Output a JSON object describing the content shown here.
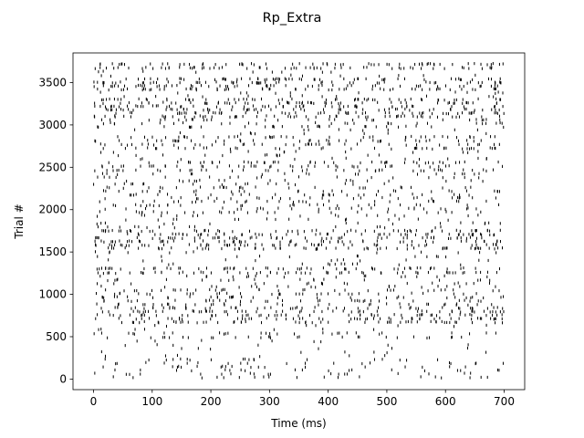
{
  "chart_data": {
    "type": "scatter",
    "subtype": "raster",
    "title": "Rp_Extra",
    "xlabel": "Time (ms)",
    "ylabel": "Trial #",
    "xlim": [
      -35,
      735
    ],
    "ylim": [
      -125,
      3850
    ],
    "x_ticks": [
      0,
      100,
      200,
      300,
      400,
      500,
      600,
      700
    ],
    "x_tick_labels": [
      "0",
      "100",
      "200",
      "300",
      "400",
      "500",
      "600",
      "700"
    ],
    "y_ticks": [
      0,
      500,
      1000,
      1500,
      2000,
      2500,
      3000,
      3500
    ],
    "y_tick_labels": [
      "0",
      "500",
      "1000",
      "1500",
      "2000",
      "2500",
      "3000",
      "3500"
    ],
    "grid": false,
    "legend": "none",
    "marker": "|",
    "marker_color": "#000000",
    "time_range": [
      0,
      700
    ],
    "trial_range": [
      0,
      3740
    ],
    "density_bands": [
      {
        "trial_range": [
          0,
          250
        ],
        "level": 0.3
      },
      {
        "trial_range": [
          250,
          470
        ],
        "level": 0.1
      },
      {
        "trial_range": [
          470,
          560
        ],
        "level": 0.45
      },
      {
        "trial_range": [
          560,
          650
        ],
        "level": 0.12
      },
      {
        "trial_range": [
          650,
          860
        ],
        "level": 0.85
      },
      {
        "trial_range": [
          860,
          1070
        ],
        "level": 0.55
      },
      {
        "trial_range": [
          1070,
          1230
        ],
        "level": 0.3
      },
      {
        "trial_range": [
          1230,
          1330
        ],
        "level": 0.95
      },
      {
        "trial_range": [
          1330,
          1520
        ],
        "level": 0.2
      },
      {
        "trial_range": [
          1520,
          1770
        ],
        "level": 0.9
      },
      {
        "trial_range": [
          1770,
          1950
        ],
        "level": 0.25
      },
      {
        "trial_range": [
          1950,
          2280
        ],
        "level": 0.45
      },
      {
        "trial_range": [
          2280,
          2440
        ],
        "level": 0.3
      },
      {
        "trial_range": [
          2440,
          2580
        ],
        "level": 0.7
      },
      {
        "trial_range": [
          2580,
          2700
        ],
        "level": 0.2
      },
      {
        "trial_range": [
          2700,
          2880
        ],
        "level": 0.65
      },
      {
        "trial_range": [
          2880,
          2960
        ],
        "level": 0.15
      },
      {
        "trial_range": [
          2960,
          3080
        ],
        "level": 0.45
      },
      {
        "trial_range": [
          3080,
          3320
        ],
        "level": 0.9
      },
      {
        "trial_range": [
          3320,
          3400
        ],
        "level": 0.2
      },
      {
        "trial_range": [
          3400,
          3560
        ],
        "level": 0.9
      },
      {
        "trial_range": [
          3560,
          3650
        ],
        "level": 0.15
      },
      {
        "trial_range": [
          3650,
          3740
        ],
        "level": 0.95
      }
    ]
  }
}
